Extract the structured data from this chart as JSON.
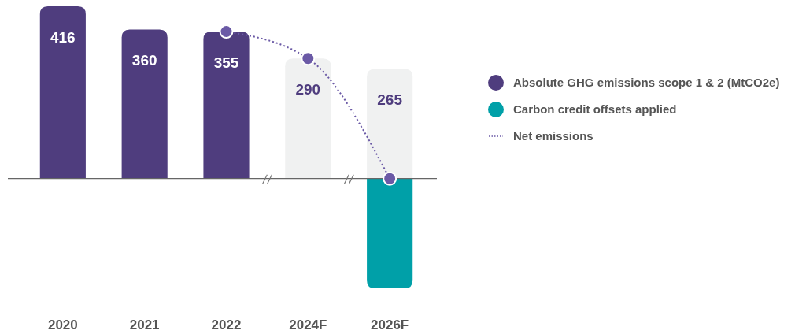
{
  "chart_data": {
    "type": "bar",
    "categories": [
      "2020",
      "2021",
      "2022",
      "2024F",
      "2026F"
    ],
    "stacked": true,
    "legend": "right",
    "series": [
      {
        "name": "Absolute GHG emissions scope 1 & 2 (MtCO2e)",
        "color": "#4f3d7e",
        "colors": [
          "#4f3d7e",
          "#4f3d7e",
          "#4f3d7e",
          "#f0f1f1",
          "#f0f1f1"
        ],
        "values": [
          416,
          360,
          355,
          290,
          265
        ],
        "value_labels": [
          "416",
          "360",
          "355",
          "290",
          "265"
        ]
      },
      {
        "name": "Carbon credit offsets applied",
        "color": "#00a0a8",
        "values": [
          null,
          null,
          null,
          null,
          -265
        ]
      },
      {
        "name": "Net emissions",
        "type": "line",
        "color": "#6b5aa6",
        "line_style": "dotted",
        "marker": "circle",
        "values": [
          null,
          null,
          355,
          290,
          0
        ]
      }
    ]
  }
}
